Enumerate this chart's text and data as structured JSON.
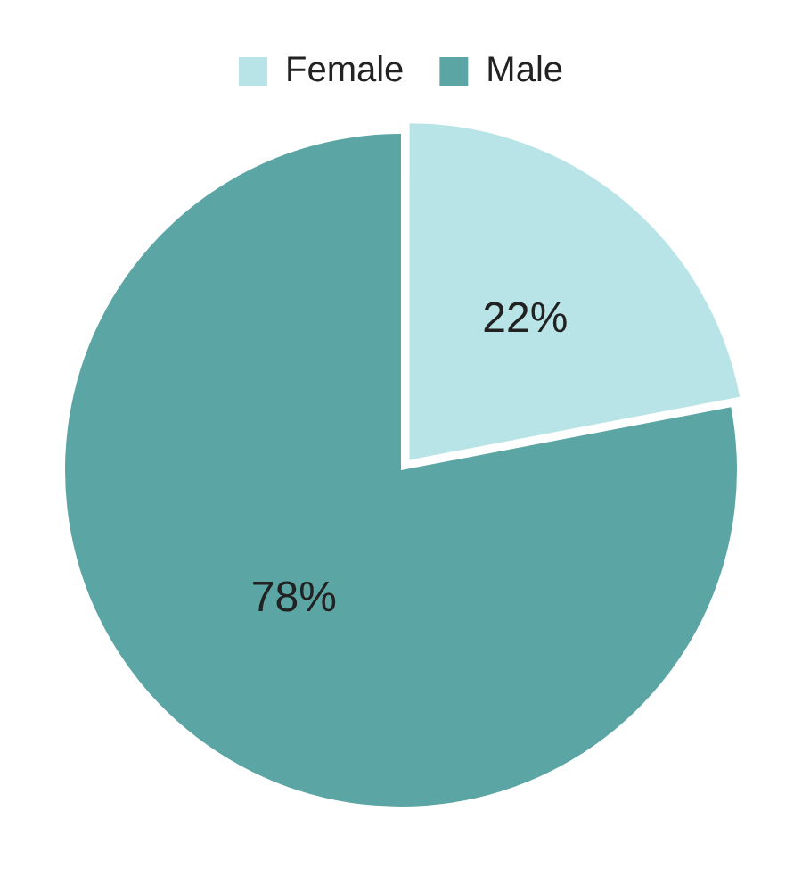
{
  "chart_data": {
    "type": "pie",
    "categories": [
      "Female",
      "Male"
    ],
    "values": [
      22,
      78
    ],
    "colors": [
      "#b9e4e7",
      "#5ba6a4"
    ],
    "value_labels": [
      "22%",
      "78%"
    ],
    "legend": "top"
  }
}
